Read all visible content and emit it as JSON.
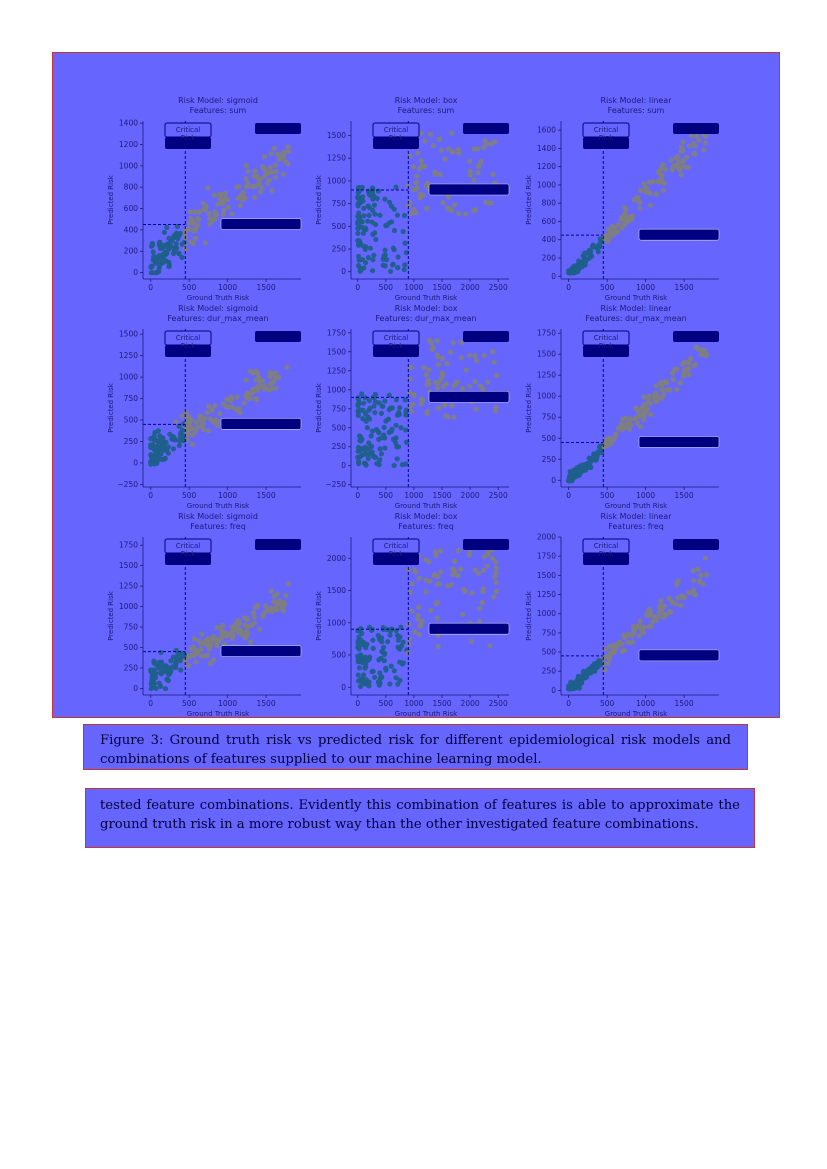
{
  "figure": {
    "caption_label": "Figure 3:",
    "caption_text": "Ground truth risk vs predicted risk for different epidemiological risk models and combinations of features supplied to our machine learning model."
  },
  "paragraph": "tested feature combinations. Evidently this combination of features is able to approximate the ground truth risk in a more robust way than the other investigated feature combinations.",
  "colors": {
    "page_bg": "#ffffff",
    "panel_bg": "#6666ff",
    "border": "#cc3333",
    "point_teal": "#1f5f8c",
    "point_gray": "#808080",
    "threshold": "#000099",
    "legend": "#000080"
  },
  "chart_data": [
    {
      "type": "scatter",
      "title": "Risk Model: sigmoid",
      "subtitle": "Features: sum",
      "xlabel": "Ground Truth Risk",
      "ylabel": "Predicted Risk",
      "xlim": [
        -100,
        1850
      ],
      "ylim": [
        -60,
        1420
      ],
      "xticks": [
        0,
        500,
        1000,
        1500
      ],
      "yticks": [
        0,
        200,
        400,
        600,
        800,
        1000,
        1200,
        1400
      ],
      "x_threshold": 450,
      "y_threshold": 450,
      "legend_label": "Critical Risk",
      "grid": false,
      "seed": 11
    },
    {
      "type": "scatter",
      "title": "Risk Model: box",
      "subtitle": "Features: sum",
      "xlabel": "Ground Truth Risk",
      "ylabel": "Predicted Risk",
      "xlim": [
        -120,
        2550
      ],
      "ylim": [
        -80,
        1660
      ],
      "xticks": [
        0,
        500,
        1000,
        1500,
        2000,
        2500
      ],
      "yticks": [
        0,
        250,
        500,
        750,
        1000,
        1250,
        1500
      ],
      "x_threshold": 900,
      "y_threshold": 900,
      "legend_label": "Critical Risk",
      "grid": false,
      "seed": 22
    },
    {
      "type": "scatter",
      "title": "Risk Model: linear",
      "subtitle": "Features: sum",
      "xlabel": "Ground Truth Risk",
      "ylabel": "Predicted Risk",
      "xlim": [
        -100,
        1850
      ],
      "ylim": [
        -30,
        1700
      ],
      "xticks": [
        0,
        500,
        1000,
        1500
      ],
      "yticks": [
        0,
        200,
        400,
        600,
        800,
        1000,
        1200,
        1400,
        1600
      ],
      "x_threshold": 450,
      "y_threshold": 450,
      "legend_label": "Critical Risk",
      "grid": false,
      "seed": 33
    },
    {
      "type": "scatter",
      "title": "Risk Model: sigmoid",
      "subtitle": "Features: dur_max_mean",
      "xlabel": "Ground Truth Risk",
      "ylabel": "Predicted Risk",
      "xlim": [
        -100,
        1850
      ],
      "ylim": [
        -280,
        1560
      ],
      "xticks": [
        0,
        500,
        1000,
        1500
      ],
      "yticks": [
        -250,
        0,
        250,
        500,
        750,
        1000,
        1250,
        1500
      ],
      "x_threshold": 450,
      "y_threshold": 450,
      "legend_label": "Critical Risk",
      "grid": false,
      "seed": 44
    },
    {
      "type": "scatter",
      "title": "Risk Model: box",
      "subtitle": "Features: dur_max_mean",
      "xlabel": "Ground Truth Risk",
      "ylabel": "Predicted Risk",
      "xlim": [
        -120,
        2550
      ],
      "ylim": [
        -280,
        1800
      ],
      "xticks": [
        0,
        500,
        1000,
        1500,
        2000,
        2500
      ],
      "yticks": [
        -250,
        0,
        250,
        500,
        750,
        1000,
        1250,
        1500,
        1750
      ],
      "x_threshold": 900,
      "y_threshold": 900,
      "legend_label": "Critical Risk",
      "grid": false,
      "seed": 55
    },
    {
      "type": "scatter",
      "title": "Risk Model: linear",
      "subtitle": "Features: dur_max_mean",
      "xlabel": "Ground Truth Risk",
      "ylabel": "Predicted Risk",
      "xlim": [
        -100,
        1850
      ],
      "ylim": [
        -80,
        1800
      ],
      "xticks": [
        0,
        500,
        1000,
        1500
      ],
      "yticks": [
        0,
        250,
        500,
        750,
        1000,
        1250,
        1500,
        1750
      ],
      "x_threshold": 450,
      "y_threshold": 450,
      "legend_label": "Critical Risk",
      "grid": false,
      "seed": 66
    },
    {
      "type": "scatter",
      "title": "Risk Model: sigmoid",
      "subtitle": "Features: freq",
      "xlabel": "Ground Truth Risk",
      "ylabel": "Predicted Risk",
      "xlim": [
        -100,
        1850
      ],
      "ylim": [
        -80,
        1850
      ],
      "xticks": [
        0,
        500,
        1000,
        1500
      ],
      "yticks": [
        0,
        250,
        500,
        750,
        1000,
        1250,
        1500,
        1750
      ],
      "x_threshold": 450,
      "y_threshold": 450,
      "legend_label": "Critical Risk",
      "grid": false,
      "seed": 77
    },
    {
      "type": "scatter",
      "title": "Risk Model: box",
      "subtitle": "Features: freq",
      "xlabel": "Ground Truth Risk",
      "ylabel": "Predicted Risk",
      "xlim": [
        -120,
        2550
      ],
      "ylim": [
        -120,
        2330
      ],
      "xticks": [
        0,
        500,
        1000,
        1500,
        2000,
        2500
      ],
      "yticks": [
        0,
        500,
        1000,
        1500,
        2000
      ],
      "x_threshold": 900,
      "y_threshold": 900,
      "legend_label": "Critical Risk",
      "grid": false,
      "seed": 88
    },
    {
      "type": "scatter",
      "title": "Risk Model: linear",
      "subtitle": "Features: freq",
      "xlabel": "Ground Truth Risk",
      "ylabel": "Predicted Risk",
      "xlim": [
        -100,
        1850
      ],
      "ylim": [
        -60,
        2000
      ],
      "xticks": [
        0,
        500,
        1000,
        1500
      ],
      "yticks": [
        0,
        250,
        500,
        750,
        1000,
        1250,
        1500,
        1750,
        2000
      ],
      "x_threshold": 450,
      "y_threshold": 450,
      "legend_label": "Critical Risk",
      "grid": false,
      "seed": 99
    }
  ]
}
